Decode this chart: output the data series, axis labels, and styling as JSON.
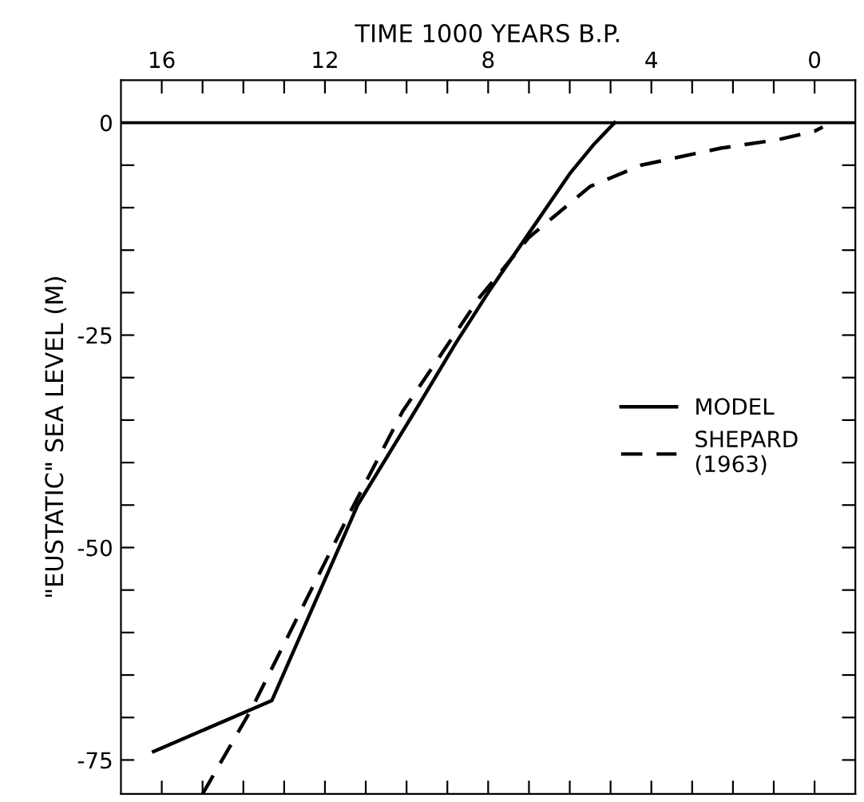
{
  "chart_data": {
    "type": "line",
    "xlabel": "TIME 1000 YEARS B.P.",
    "ylabel": "\"EUSTATIC\" SEA LEVEL (M)",
    "xlim": [
      17,
      -1
    ],
    "ylim": [
      -79,
      5
    ],
    "xticks": [
      16,
      {
        "value": 15,
        "label": null
      },
      {
        "value": 14,
        "label": null
      },
      {
        "value": 13,
        "label": null
      },
      12,
      {
        "value": 11,
        "label": null
      },
      {
        "value": 10,
        "label": null
      },
      {
        "value": 9,
        "label": null
      },
      8,
      {
        "value": 7,
        "label": null
      },
      {
        "value": 6,
        "label": null
      },
      {
        "value": 5,
        "label": null
      },
      4,
      {
        "value": 3,
        "label": null
      },
      {
        "value": 2,
        "label": null
      },
      {
        "value": 1,
        "label": null
      },
      0
    ],
    "yticks": [
      0,
      {
        "value": -5,
        "label": null
      },
      {
        "value": -10,
        "label": null
      },
      {
        "value": -15,
        "label": null
      },
      {
        "value": -20,
        "label": null
      },
      -25,
      {
        "value": -30,
        "label": null
      },
      {
        "value": -35,
        "label": null
      },
      {
        "value": -40,
        "label": null
      },
      {
        "value": -45,
        "label": null
      },
      -50,
      {
        "value": -55,
        "label": null
      },
      {
        "value": -60,
        "label": null
      },
      {
        "value": -65,
        "label": null
      },
      {
        "value": -70,
        "label": null
      },
      -75
    ],
    "grid": false,
    "legend": "right",
    "ref_lines": [
      {
        "axis": "y",
        "value": 0,
        "color": "#000000"
      }
    ],
    "series": [
      {
        "name": "MODEL",
        "color": "#000000",
        "line_style": "solid",
        "x": [
          16.2,
          13.3,
          11.2,
          9.8,
          8.8,
          8,
          7,
          6,
          5.4,
          4.9
        ],
        "values": [
          -74,
          -68,
          -45,
          -34,
          -26,
          -20,
          -13,
          -6,
          -2.5,
          0
        ]
      },
      {
        "name": "SHEPARD\n(1963)",
        "color": "#000000",
        "line_style": "dashed",
        "x": [
          15,
          13.8,
          11.4,
          10.1,
          8.2,
          7,
          5.5,
          4.25,
          2.3,
          0.9,
          0,
          -0.2
        ],
        "values": [
          -79,
          -69,
          -46,
          -34,
          -20.5,
          -13.5,
          -7.5,
          -5,
          -3,
          -2,
          -1,
          -0.5
        ]
      }
    ]
  }
}
